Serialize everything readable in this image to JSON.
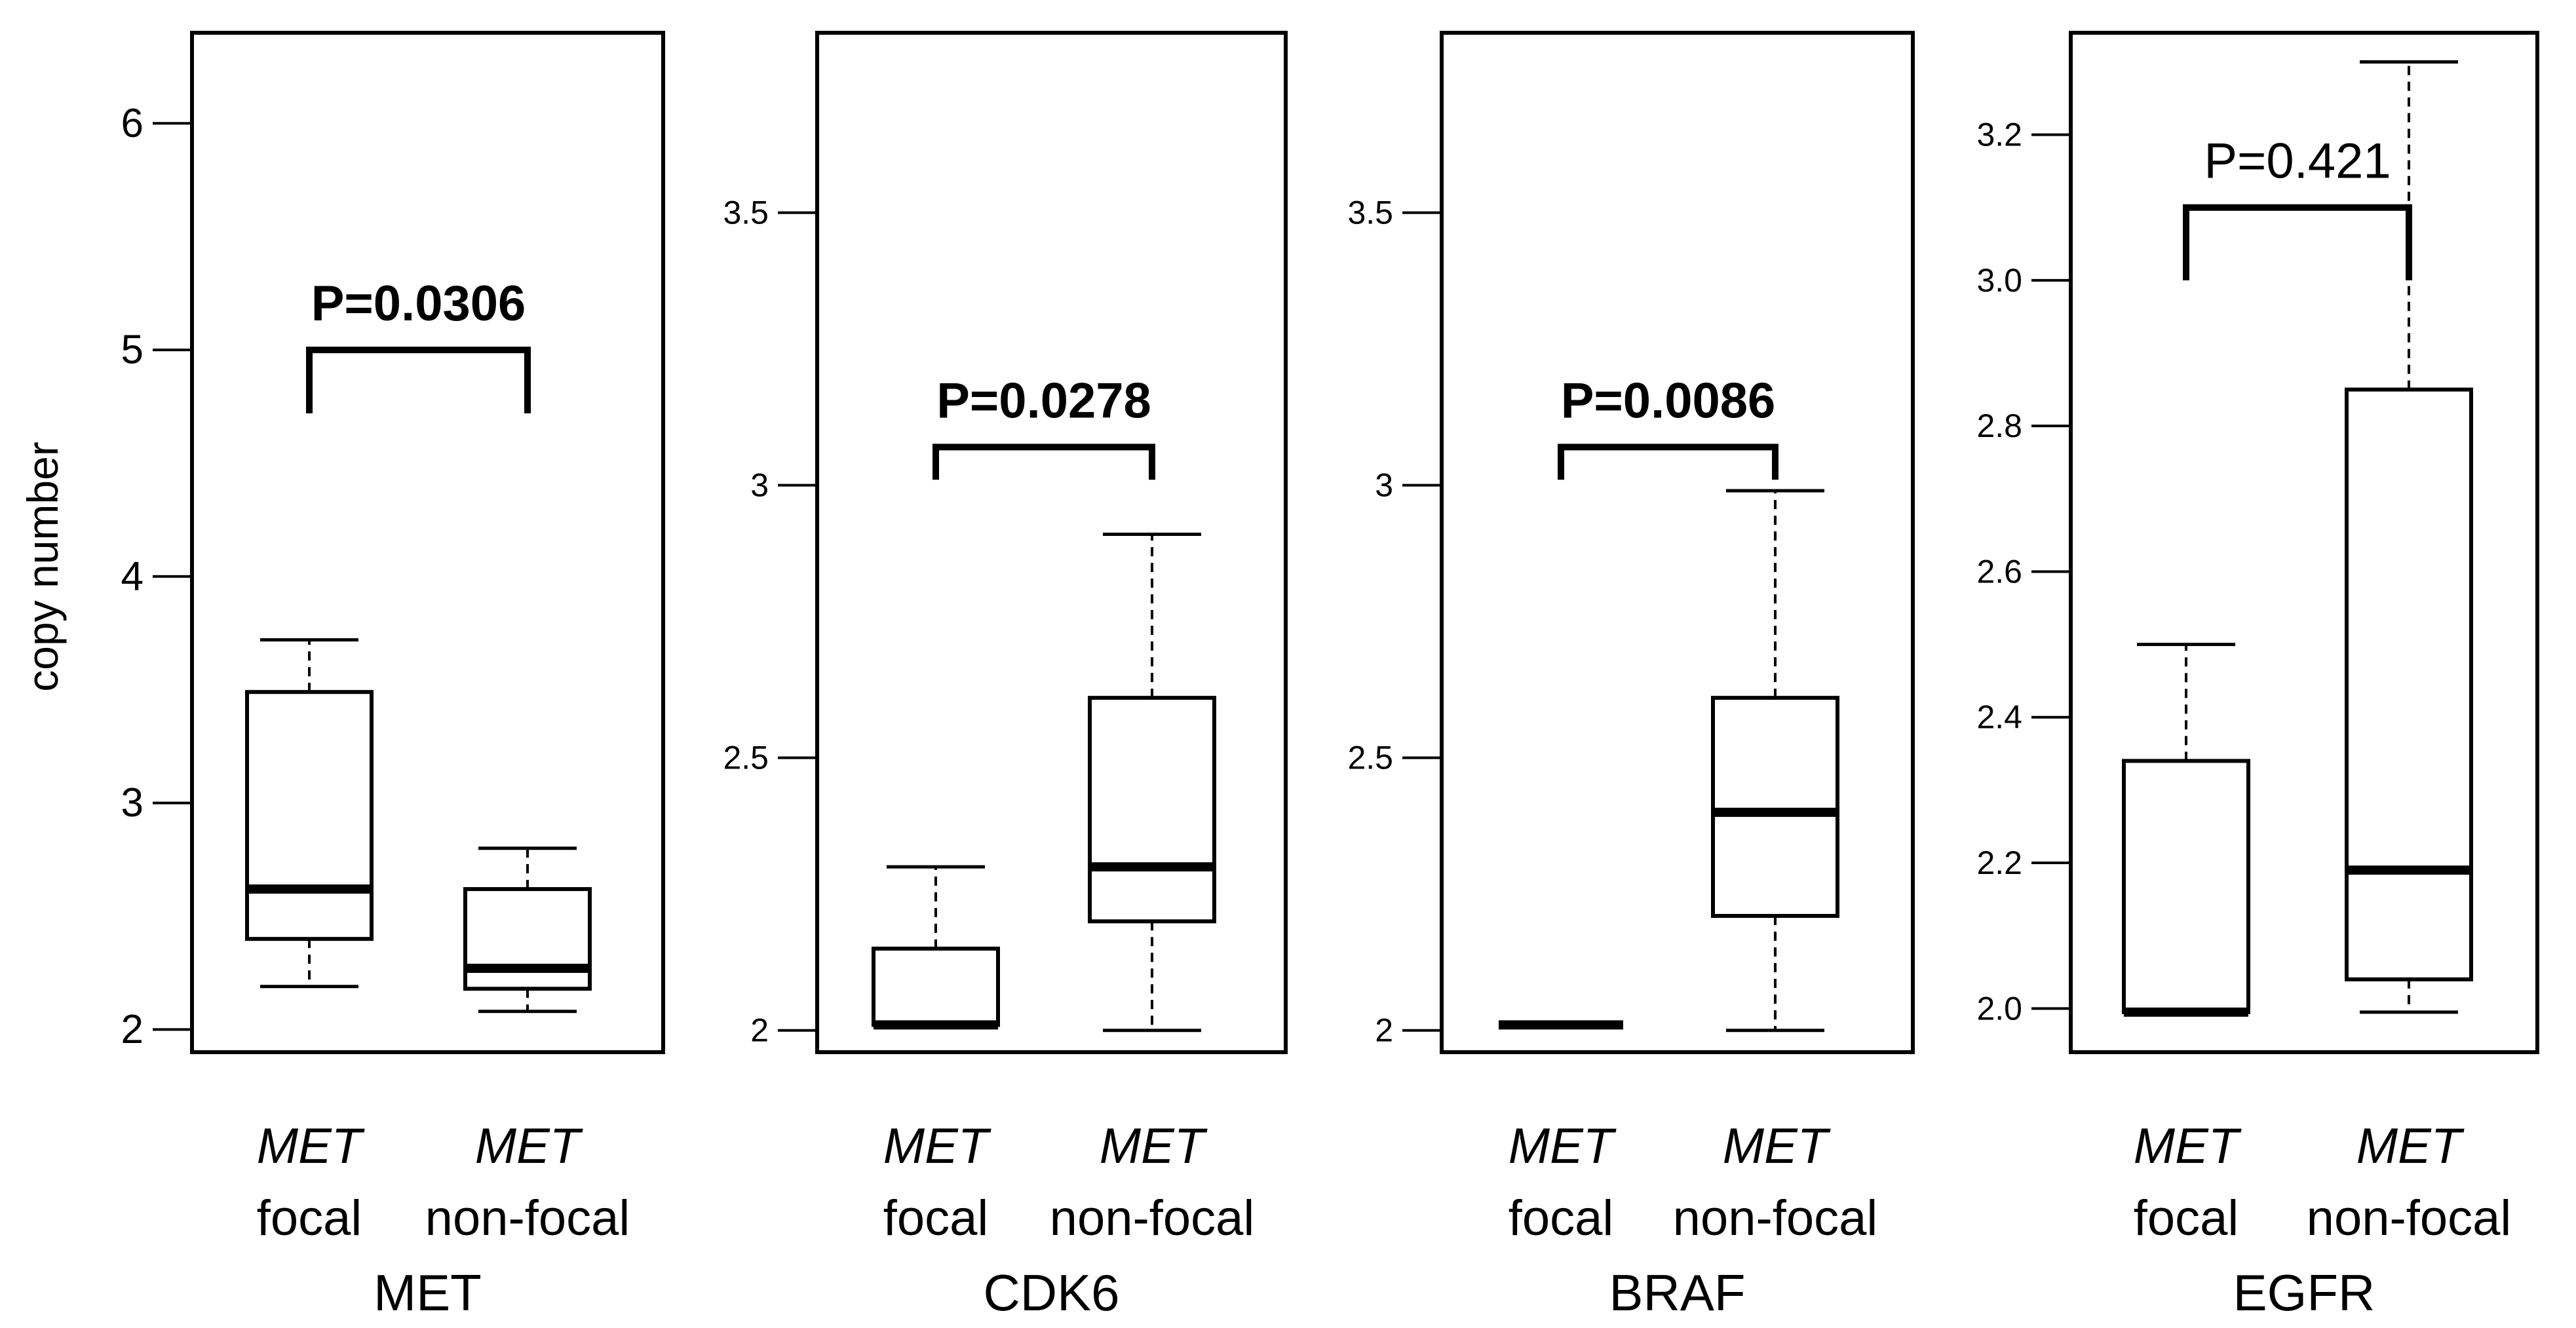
{
  "chart_data": {
    "type": "boxplot",
    "ylabel": "copy number",
    "group_line1": "MET",
    "panels": [
      {
        "gene": "MET",
        "ylim": [
          1.9,
          6.4
        ],
        "ticks": [
          2,
          3,
          4,
          5,
          6
        ],
        "tick_labels": [
          "2",
          "3",
          "4",
          "5",
          "6"
        ],
        "pvalue": "P=0.0306",
        "pvalue_bold": true,
        "bracket": {
          "y": 5.0,
          "leg_bottom": 4.72
        },
        "groups": [
          {
            "line1": "MET",
            "line2": "focal",
            "whisker_low": 2.19,
            "q1": 2.4,
            "median": 2.62,
            "q3": 3.49,
            "whisker_high": 3.72
          },
          {
            "line1": "MET",
            "line2": "non-focal",
            "whisker_low": 2.08,
            "q1": 2.18,
            "median": 2.27,
            "q3": 2.62,
            "whisker_high": 2.8
          }
        ]
      },
      {
        "gene": "CDK6",
        "ylim": [
          1.96,
          3.83
        ],
        "ticks": [
          2,
          2.5,
          3,
          3.5
        ],
        "tick_labels": [
          "2",
          "2.5",
          "3",
          "3.5"
        ],
        "pvalue": "P=0.0278",
        "pvalue_bold": true,
        "bracket": {
          "y": 3.07,
          "leg_bottom": 3.01
        },
        "groups": [
          {
            "line1": "MET",
            "line2": "focal",
            "whisker_low": 2.01,
            "q1": 2.01,
            "median": 2.01,
            "q3": 2.15,
            "whisker_high": 2.3
          },
          {
            "line1": "MET",
            "line2": "non-focal",
            "whisker_low": 2.0,
            "q1": 2.2,
            "median": 2.3,
            "q3": 2.61,
            "whisker_high": 2.91
          }
        ]
      },
      {
        "gene": "BRAF",
        "ylim": [
          1.96,
          3.83
        ],
        "ticks": [
          2,
          2.5,
          3,
          3.5
        ],
        "tick_labels": [
          "2",
          "2.5",
          "3",
          "3.5"
        ],
        "pvalue": "P=0.0086",
        "pvalue_bold": true,
        "bracket": {
          "y": 3.07,
          "leg_bottom": 3.01
        },
        "groups": [
          {
            "line1": "MET",
            "line2": "focal",
            "whisker_low": 2.01,
            "q1": 2.01,
            "median": 2.01,
            "q3": 2.01,
            "whisker_high": 2.01
          },
          {
            "line1": "MET",
            "line2": "non-focal",
            "whisker_low": 2.0,
            "q1": 2.21,
            "median": 2.4,
            "q3": 2.61,
            "whisker_high": 2.99
          }
        ]
      },
      {
        "gene": "EGFR",
        "ylim": [
          1.94,
          3.34
        ],
        "ticks": [
          2.0,
          2.2,
          2.4,
          2.6,
          2.8,
          3.0,
          3.2
        ],
        "tick_labels": [
          "2.0",
          "2.2",
          "2.4",
          "2.6",
          "2.8",
          "3.0",
          "3.2"
        ],
        "pvalue": "P=0.421",
        "pvalue_bold": false,
        "bracket": {
          "y": 3.1,
          "leg_bottom": 3.0
        },
        "groups": [
          {
            "line1": "MET",
            "line2": "focal",
            "whisker_low": 1.995,
            "q1": 1.995,
            "median": 1.995,
            "q3": 2.34,
            "whisker_high": 2.5
          },
          {
            "line1": "MET",
            "line2": "non-focal",
            "whisker_low": 1.995,
            "q1": 2.04,
            "median": 2.19,
            "q3": 2.85,
            "whisker_high": 3.3
          }
        ]
      }
    ]
  }
}
